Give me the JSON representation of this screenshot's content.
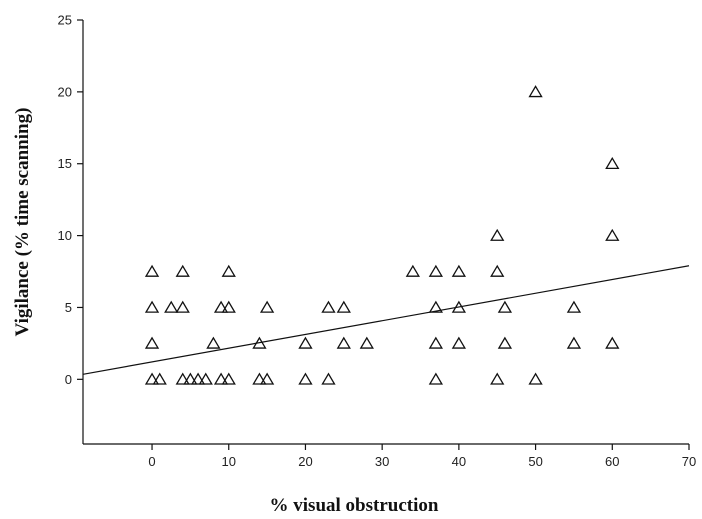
{
  "chart_data": {
    "type": "scatter",
    "xlabel": "% visual obstruction",
    "ylabel": "Vigilance (% time scanning)",
    "xlim": [
      -9,
      70
    ],
    "ylim": [
      -4.5,
      25
    ],
    "xticks": [
      0,
      10,
      20,
      30,
      40,
      50,
      60,
      70
    ],
    "yticks": [
      0,
      5,
      10,
      15,
      20,
      25
    ],
    "grid": false,
    "marker": "triangle-open",
    "points": [
      {
        "x": 0,
        "y": 7.5
      },
      {
        "x": 0,
        "y": 5
      },
      {
        "x": 0,
        "y": 2.5
      },
      {
        "x": 0,
        "y": 0
      },
      {
        "x": 1,
        "y": 0
      },
      {
        "x": 2.5,
        "y": 5
      },
      {
        "x": 4,
        "y": 7.5
      },
      {
        "x": 4,
        "y": 5
      },
      {
        "x": 4,
        "y": 0
      },
      {
        "x": 5,
        "y": 0
      },
      {
        "x": 6,
        "y": 0
      },
      {
        "x": 7,
        "y": 0
      },
      {
        "x": 8,
        "y": 2.5
      },
      {
        "x": 9,
        "y": 5
      },
      {
        "x": 9,
        "y": 0
      },
      {
        "x": 10,
        "y": 7.5
      },
      {
        "x": 10,
        "y": 5
      },
      {
        "x": 10,
        "y": 0
      },
      {
        "x": 14,
        "y": 2.5
      },
      {
        "x": 14,
        "y": 0
      },
      {
        "x": 15,
        "y": 5
      },
      {
        "x": 15,
        "y": 0
      },
      {
        "x": 20,
        "y": 2.5
      },
      {
        "x": 20,
        "y": 0
      },
      {
        "x": 23,
        "y": 5
      },
      {
        "x": 23,
        "y": 0
      },
      {
        "x": 25,
        "y": 5
      },
      {
        "x": 25,
        "y": 2.5
      },
      {
        "x": 28,
        "y": 2.5
      },
      {
        "x": 34,
        "y": 7.5
      },
      {
        "x": 37,
        "y": 7.5
      },
      {
        "x": 37,
        "y": 5
      },
      {
        "x": 37,
        "y": 2.5
      },
      {
        "x": 37,
        "y": 0
      },
      {
        "x": 40,
        "y": 7.5
      },
      {
        "x": 40,
        "y": 5
      },
      {
        "x": 40,
        "y": 2.5
      },
      {
        "x": 45,
        "y": 10
      },
      {
        "x": 45,
        "y": 7.5
      },
      {
        "x": 45,
        "y": 0
      },
      {
        "x": 46,
        "y": 5
      },
      {
        "x": 46,
        "y": 2.5
      },
      {
        "x": 50,
        "y": 20
      },
      {
        "x": 50,
        "y": 0
      },
      {
        "x": 55,
        "y": 5
      },
      {
        "x": 55,
        "y": 2.5
      },
      {
        "x": 60,
        "y": 15
      },
      {
        "x": 60,
        "y": 10
      },
      {
        "x": 60,
        "y": 2.5
      }
    ],
    "fit_line": {
      "x": [
        -9,
        70
      ],
      "y": [
        0.35,
        7.9
      ]
    }
  }
}
